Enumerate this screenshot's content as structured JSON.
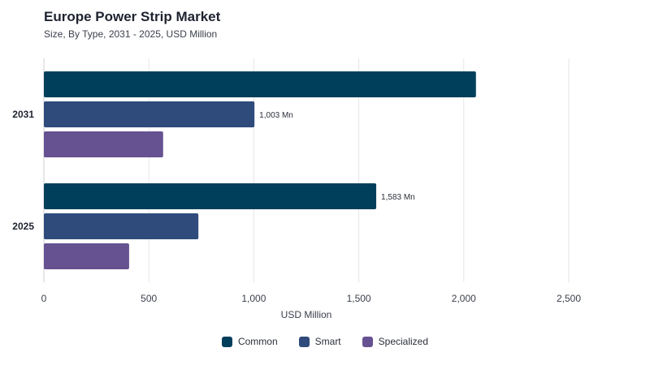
{
  "chart_data": {
    "type": "bar",
    "orientation": "horizontal",
    "title": "Europe Power Strip Market",
    "subtitle": "Size, By Type, 2031 - 2025, USD Million",
    "xlabel": "USD Million",
    "ylabel": "",
    "xlim": [
      0,
      2500
    ],
    "xticks": [
      "0",
      "500",
      "1,000",
      "1,500",
      "2,000",
      "2,500"
    ],
    "xtick_values": [
      0,
      500,
      1000,
      1500,
      2000,
      2500
    ],
    "categories": [
      "2031",
      "2025"
    ],
    "series": [
      {
        "name": "Common",
        "color": "#003f5c",
        "values": [
          2058,
          1583
        ],
        "labels": [
          "",
          "1,583 Mn"
        ]
      },
      {
        "name": "Smart",
        "color": "#2f4b7c",
        "values": [
          1003,
          736
        ],
        "labels": [
          "1,003 Mn",
          ""
        ]
      },
      {
        "name": "Specialized",
        "color": "#665191",
        "values": [
          568,
          406
        ],
        "labels": [
          "",
          ""
        ]
      }
    ],
    "grid": true,
    "legend_position": "bottom-center"
  }
}
